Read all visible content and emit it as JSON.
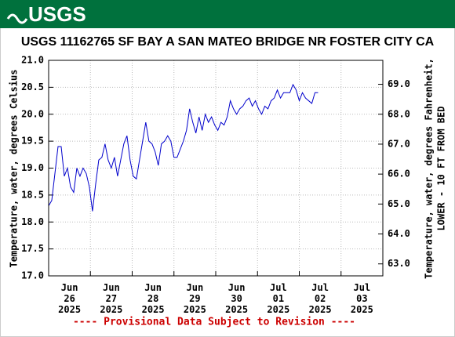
{
  "logo": "USGS",
  "chart_data": {
    "type": "line",
    "title": "USGS 11162765 SF BAY A SAN MATEO BRIDGE NR FOSTER CITY CA",
    "ylabel": "Temperature, water, degrees Celsius",
    "y2label": [
      "Temperature, water, degrees Fahrenheit,",
      "LOWER - 10 FT FROM BED"
    ],
    "footnote": "---- Provisional Data Subject to Revision ----",
    "color": "#0000cc",
    "grid": true,
    "xlim": [
      26,
      34
    ],
    "xticks": [
      {
        "value": 26,
        "label": "Jun 26 2025"
      },
      {
        "value": 27,
        "label": "Jun 27 2025"
      },
      {
        "value": 28,
        "label": "Jun 28 2025"
      },
      {
        "value": 29,
        "label": "Jun 29 2025"
      },
      {
        "value": 30,
        "label": "Jun 30 2025"
      },
      {
        "value": 31,
        "label": "Jul 01 2025"
      },
      {
        "value": 32,
        "label": "Jul 02 2025"
      },
      {
        "value": 33,
        "label": "Jul 03 2025"
      }
    ],
    "ylim": [
      17,
      21
    ],
    "yticks": [
      {
        "value": 17,
        "label": "17.0"
      },
      {
        "value": 17.5,
        "label": "17.5"
      },
      {
        "value": 18,
        "label": "18.0"
      },
      {
        "value": 18.5,
        "label": "18.5"
      },
      {
        "value": 19,
        "label": "19.0"
      },
      {
        "value": 19.5,
        "label": "19.5"
      },
      {
        "value": 20,
        "label": "20.0"
      },
      {
        "value": 20.5,
        "label": "20.5"
      },
      {
        "value": 21,
        "label": "21.0"
      }
    ],
    "y2lim": [
      62.6,
      69.8
    ],
    "y2ticks": [
      {
        "value": 63,
        "label": "63.0"
      },
      {
        "value": 64,
        "label": "64.0"
      },
      {
        "value": 65,
        "label": "65.0"
      },
      {
        "value": 66,
        "label": "66.0"
      },
      {
        "value": 67,
        "label": "67.0"
      },
      {
        "value": 68,
        "label": "68.0"
      },
      {
        "value": 69,
        "label": "69.0"
      }
    ],
    "x": [
      26,
      26.075,
      26.15,
      26.225,
      26.3,
      26.375,
      26.45,
      26.525,
      26.6,
      26.675,
      26.75,
      26.825,
      26.9,
      26.975,
      27.05,
      27.125,
      27.2,
      27.275,
      27.35,
      27.425,
      27.5,
      27.575,
      27.65,
      27.725,
      27.8,
      27.875,
      27.95,
      28.025,
      28.1,
      28.175,
      28.25,
      28.325,
      28.4,
      28.475,
      28.55,
      28.625,
      28.7,
      28.775,
      28.85,
      28.925,
      29,
      29.075,
      29.15,
      29.225,
      29.3,
      29.375,
      29.45,
      29.525,
      29.6,
      29.675,
      29.75,
      29.825,
      29.9,
      29.975,
      30.05,
      30.125,
      30.2,
      30.275,
      30.35,
      30.425,
      30.5,
      30.575,
      30.65,
      30.725,
      30.8,
      30.875,
      30.95,
      31.025,
      31.1,
      31.175,
      31.25,
      31.325,
      31.4,
      31.475,
      31.55,
      31.625,
      31.7,
      31.775,
      31.85,
      31.925,
      32,
      32.075,
      32.15,
      32.225,
      32.3,
      32.375,
      32.45
    ],
    "values": [
      18.3,
      18.4,
      18.9,
      19.4,
      19.4,
      18.85,
      19.0,
      18.65,
      18.55,
      19.0,
      18.85,
      19.0,
      18.9,
      18.65,
      18.2,
      18.7,
      19.15,
      19.2,
      19.45,
      19.15,
      19.0,
      19.2,
      18.85,
      19.15,
      19.45,
      19.6,
      19.15,
      18.85,
      18.8,
      19.15,
      19.5,
      19.85,
      19.5,
      19.45,
      19.3,
      19.05,
      19.45,
      19.5,
      19.6,
      19.5,
      19.2,
      19.2,
      19.35,
      19.5,
      19.7,
      20.1,
      19.85,
      19.65,
      19.95,
      19.7,
      20.0,
      19.85,
      19.95,
      19.8,
      19.7,
      19.85,
      19.8,
      19.95,
      20.25,
      20.1,
      20.0,
      20.1,
      20.15,
      20.25,
      20.3,
      20.15,
      20.25,
      20.1,
      20.0,
      20.15,
      20.1,
      20.25,
      20.3,
      20.45,
      20.3,
      20.4,
      20.4,
      20.4,
      20.55,
      20.45,
      20.25,
      20.4,
      20.3,
      20.25,
      20.2,
      20.4,
      20.4
    ]
  }
}
